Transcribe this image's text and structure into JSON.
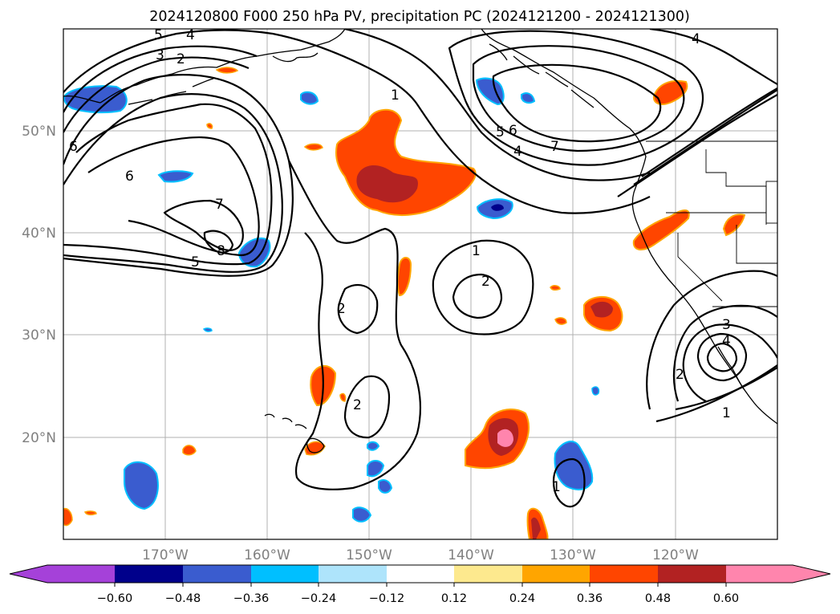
{
  "title": "2024120800 F000 250 hPa PV, precipitation PC (2024121200 - 2024121300)",
  "map": {
    "lat_labels": [
      "50°N",
      "40°N",
      "30°N",
      "20°N"
    ],
    "lon_labels": [
      "170°W",
      "160°W",
      "150°W",
      "140°W",
      "130°W",
      "120°W"
    ],
    "contour_labels": [
      "5",
      "4",
      "3",
      "2",
      "1",
      "6",
      "7",
      "8",
      "5",
      "5",
      "6",
      "4",
      "7",
      "1",
      "2",
      "2",
      "2",
      "1",
      "4",
      "3",
      "2",
      "1",
      "1",
      "4"
    ]
  },
  "colorbar": {
    "ticks": [
      "−0.60",
      "−0.48",
      "−0.36",
      "−0.24",
      "−0.12",
      "0.12",
      "0.24",
      "0.36",
      "0.48",
      "0.60"
    ],
    "colors": [
      "#a541d9",
      "#00008b",
      "#3a5ccf",
      "#00bfff",
      "#aee4fb",
      "#ffffff",
      "#fde98e",
      "#ffa500",
      "#ff4500",
      "#b22222",
      "#ff85ad"
    ]
  },
  "colors": {
    "strong_positive": "#b22222",
    "positive": "#ff4500",
    "weak_positive": "#ffa500",
    "negative": "#3a5ccf",
    "weak_negative": "#00bfff"
  }
}
